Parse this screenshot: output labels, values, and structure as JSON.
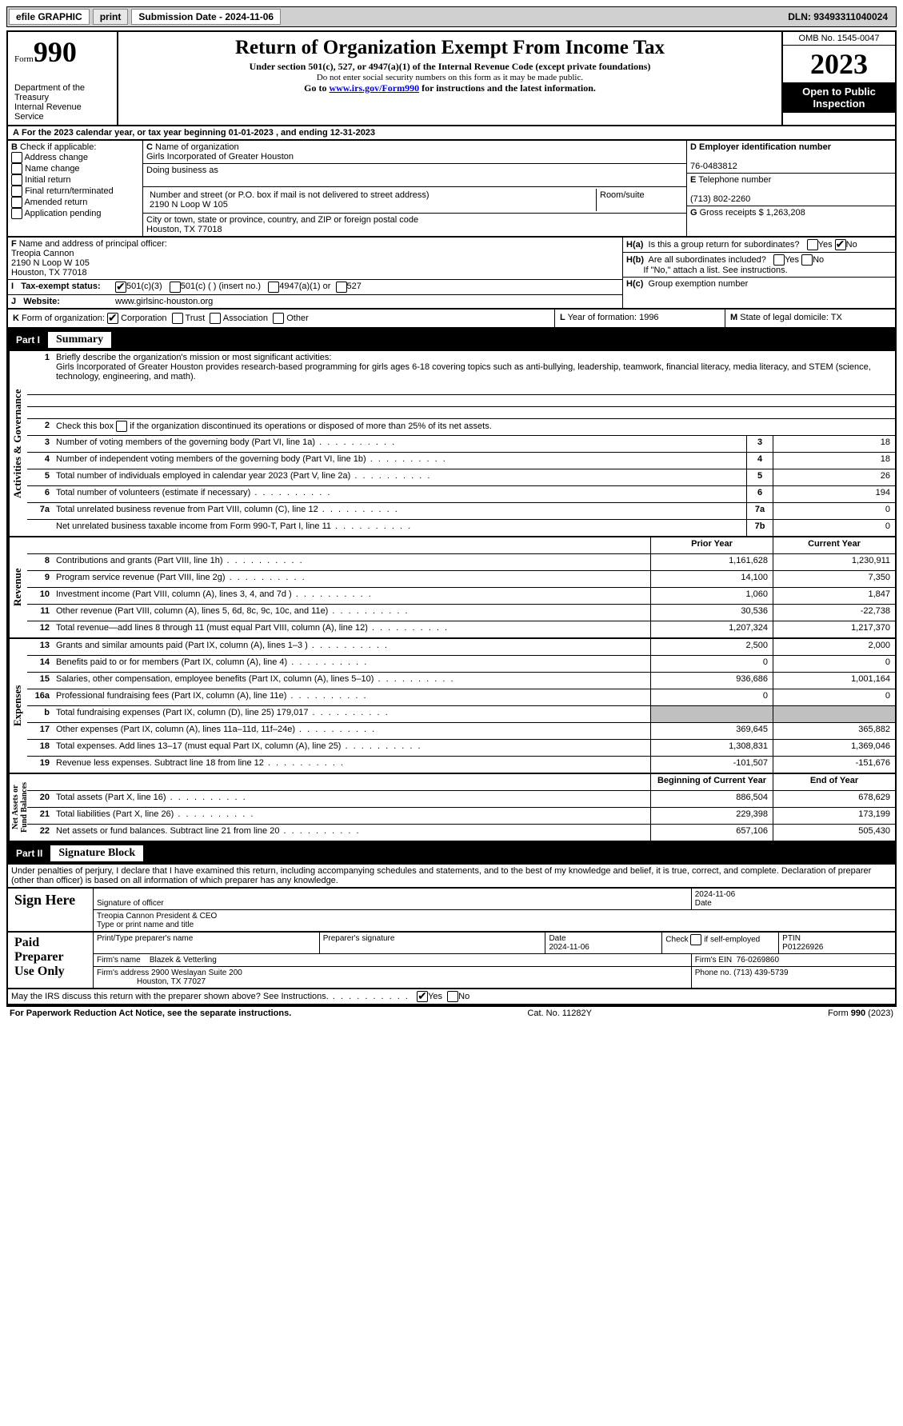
{
  "topbar": {
    "efile": "efile GRAPHIC",
    "print": "print",
    "submission": "Submission Date - 2024-11-06",
    "dln": "DLN: 93493311040024"
  },
  "header": {
    "form_word": "Form",
    "form_no": "990",
    "dept": "Department of the Treasury",
    "irs": "Internal Revenue Service",
    "title": "Return of Organization Exempt From Income Tax",
    "sub": "Under section 501(c), 527, or 4947(a)(1) of the Internal Revenue Code (except private foundations)",
    "note": "Do not enter social security numbers on this form as it may be made public.",
    "goto": "Go to ",
    "link": "www.irs.gov/Form990",
    "goto2": " for instructions and the latest information.",
    "omb": "OMB No. 1545-0047",
    "year": "2023",
    "open": "Open to Public Inspection"
  },
  "period": "For the 2023 calendar year, or tax year beginning 01-01-2023   , and ending 12-31-2023",
  "box_b": {
    "label": "Check if applicable:",
    "items": [
      "Address change",
      "Name change",
      "Initial return",
      "Final return/terminated",
      "Amended return",
      "Application pending"
    ]
  },
  "box_c": {
    "name_label": "Name of organization",
    "name": "Girls Incorporated of Greater Houston",
    "dba_label": "Doing business as",
    "street_label": "Number and street (or P.O. box if mail is not delivered to street address)",
    "room_label": "Room/suite",
    "street": "2190 N Loop W 105",
    "city_label": "City or town, state or province, country, and ZIP or foreign postal code",
    "city": "Houston, TX  77018"
  },
  "box_d": {
    "ein_label": "Employer identification number",
    "ein": "76-0483812",
    "phone_label": "Telephone number",
    "phone": "(713) 802-2260",
    "gross_label": "Gross receipts $",
    "gross": "1,263,208"
  },
  "box_f": {
    "label": "Name and address of principal officer:",
    "name": "Treopia Cannon",
    "addr1": "2190 N Loop W 105",
    "addr2": "Houston, TX  77018"
  },
  "box_h": {
    "a": "Is this a group return for subordinates?",
    "b": "Are all subordinates included?",
    "b2": "If \"No,\" attach a list. See instructions.",
    "c": "Group exemption number"
  },
  "tax_status": {
    "label": "Tax-exempt status:",
    "opts": [
      "501(c)(3)",
      "501(c) (  ) (insert no.)",
      "4947(a)(1) or",
      "527"
    ]
  },
  "website": {
    "label": "Website:",
    "url": "www.girlsinc-houston.org"
  },
  "box_k": {
    "label": "Form of organization:",
    "opts": [
      "Corporation",
      "Trust",
      "Association",
      "Other"
    ]
  },
  "box_l": {
    "label": "Year of formation:",
    "val": "1996"
  },
  "box_m": {
    "label": "State of legal domicile:",
    "val": "TX"
  },
  "part1": {
    "label": "Part I",
    "title": "Summary"
  },
  "summary": {
    "mission_prompt": "Briefly describe the organization's mission or most significant activities:",
    "mission": "Girls Incorporated of Greater Houston provides research-based programming for girls ages 6-18 covering topics such as anti-bullying, leadership, teamwork, financial literacy, media literacy, and STEM (science, technology, engineering, and math).",
    "line2": "Check this box      if the organization discontinued its operations or disposed of more than 25% of its net assets.",
    "lines_single": [
      {
        "n": "3",
        "d": "Number of voting members of the governing body (Part VI, line 1a)",
        "b": "3",
        "v": "18"
      },
      {
        "n": "4",
        "d": "Number of independent voting members of the governing body (Part VI, line 1b)",
        "b": "4",
        "v": "18"
      },
      {
        "n": "5",
        "d": "Total number of individuals employed in calendar year 2023 (Part V, line 2a)",
        "b": "5",
        "v": "26"
      },
      {
        "n": "6",
        "d": "Total number of volunteers (estimate if necessary)",
        "b": "6",
        "v": "194"
      },
      {
        "n": "7a",
        "d": "Total unrelated business revenue from Part VIII, column (C), line 12",
        "b": "7a",
        "v": "0"
      },
      {
        "n": "",
        "d": "Net unrelated business taxable income from Form 990-T, Part I, line 11",
        "b": "7b",
        "v": "0"
      }
    ],
    "col_headers": {
      "prior": "Prior Year",
      "current": "Current Year"
    },
    "revenue": [
      {
        "n": "8",
        "d": "Contributions and grants (Part VIII, line 1h)",
        "p": "1,161,628",
        "c": "1,230,911"
      },
      {
        "n": "9",
        "d": "Program service revenue (Part VIII, line 2g)",
        "p": "14,100",
        "c": "7,350"
      },
      {
        "n": "10",
        "d": "Investment income (Part VIII, column (A), lines 3, 4, and 7d )",
        "p": "1,060",
        "c": "1,847"
      },
      {
        "n": "11",
        "d": "Other revenue (Part VIII, column (A), lines 5, 6d, 8c, 9c, 10c, and 11e)",
        "p": "30,536",
        "c": "-22,738"
      },
      {
        "n": "12",
        "d": "Total revenue—add lines 8 through 11 (must equal Part VIII, column (A), line 12)",
        "p": "1,207,324",
        "c": "1,217,370"
      }
    ],
    "expenses": [
      {
        "n": "13",
        "d": "Grants and similar amounts paid (Part IX, column (A), lines 1–3 )",
        "p": "2,500",
        "c": "2,000"
      },
      {
        "n": "14",
        "d": "Benefits paid to or for members (Part IX, column (A), line 4)",
        "p": "0",
        "c": "0"
      },
      {
        "n": "15",
        "d": "Salaries, other compensation, employee benefits (Part IX, column (A), lines 5–10)",
        "p": "936,686",
        "c": "1,001,164"
      },
      {
        "n": "16a",
        "d": "Professional fundraising fees (Part IX, column (A), line 11e)",
        "p": "0",
        "c": "0"
      },
      {
        "n": "b",
        "d": "Total fundraising expenses (Part IX, column (D), line 25) 179,017",
        "p": "shade",
        "c": "shade"
      },
      {
        "n": "17",
        "d": "Other expenses (Part IX, column (A), lines 11a–11d, 11f–24e)",
        "p": "369,645",
        "c": "365,882"
      },
      {
        "n": "18",
        "d": "Total expenses. Add lines 13–17 (must equal Part IX, column (A), line 25)",
        "p": "1,308,831",
        "c": "1,369,046"
      },
      {
        "n": "19",
        "d": "Revenue less expenses. Subtract line 18 from line 12",
        "p": "-101,507",
        "c": "-151,676"
      }
    ],
    "col_headers2": {
      "prior": "Beginning of Current Year",
      "current": "End of Year"
    },
    "netassets": [
      {
        "n": "20",
        "d": "Total assets (Part X, line 16)",
        "p": "886,504",
        "c": "678,629"
      },
      {
        "n": "21",
        "d": "Total liabilities (Part X, line 26)",
        "p": "229,398",
        "c": "173,199"
      },
      {
        "n": "22",
        "d": "Net assets or fund balances. Subtract line 21 from line 20",
        "p": "657,106",
        "c": "505,430"
      }
    ],
    "vlabels": {
      "gov": "Activities & Governance",
      "rev": "Revenue",
      "exp": "Expenses",
      "net": "Net Assets or\nFund Balances"
    }
  },
  "part2": {
    "label": "Part II",
    "title": "Signature Block"
  },
  "perjury": "Under penalties of perjury, I declare that I have examined this return, including accompanying schedules and statements, and to the best of my knowledge and belief, it is true, correct, and complete. Declaration of preparer (other than officer) is based on all information of which preparer has any knowledge.",
  "sign": {
    "left": "Sign Here",
    "sig_label": "Signature of officer",
    "date": "2024-11-06",
    "date_label": "Date",
    "name": "Treopia Cannon  President & CEO",
    "name_label": "Type or print name and title"
  },
  "paid": {
    "left": "Paid Preparer Use Only",
    "h1": "Print/Type preparer's name",
    "h2": "Preparer's signature",
    "h3": "Date",
    "date": "2024-11-06",
    "h4": "Check       if self-employed",
    "h5": "PTIN",
    "ptin": "P01226926",
    "firm_label": "Firm's name",
    "firm": "Blazek & Vetterling",
    "ein_label": "Firm's EIN",
    "ein": "76-0269860",
    "addr_label": "Firm's address",
    "addr1": "2900 Weslayan Suite 200",
    "addr2": "Houston, TX  77027",
    "phone_label": "Phone no.",
    "phone": "(713) 439-5739"
  },
  "discuss": "May the IRS discuss this return with the preparer shown above? See Instructions.",
  "footer": {
    "left": "For Paperwork Reduction Act Notice, see the separate instructions.",
    "mid": "Cat. No. 11282Y",
    "right": "Form 990 (2023)"
  }
}
